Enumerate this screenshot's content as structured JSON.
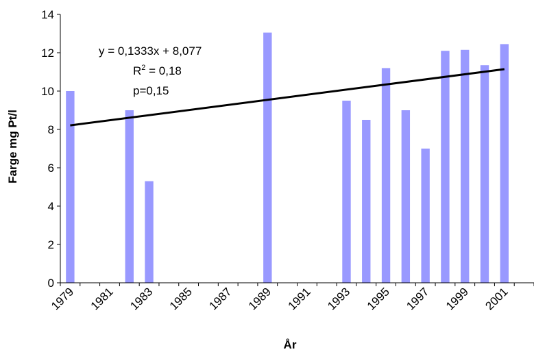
{
  "chart_data": {
    "type": "bar",
    "title": "",
    "xlabel": "År",
    "ylabel": "Farge mg Pt/l",
    "ylim": [
      0,
      14
    ],
    "y_ticks": [
      "0",
      "2",
      "4",
      "6",
      "8",
      "10",
      "12",
      "14"
    ],
    "x_range": [
      1979,
      2002
    ],
    "x_tick_labels": [
      "1979",
      "1981",
      "1983",
      "1985",
      "1987",
      "1989",
      "1991",
      "1993",
      "1995",
      "1997",
      "1999",
      "2001"
    ],
    "bar_color": "#9999ff",
    "grid": false,
    "series": [
      {
        "x": [
          1979,
          1982,
          1983,
          1989,
          1993,
          1994,
          1995,
          1996,
          1997,
          1998,
          1999,
          2000,
          2001
        ],
        "values": [
          10.0,
          9.0,
          5.3,
          13.05,
          9.5,
          8.5,
          11.2,
          9.0,
          7.0,
          12.1,
          12.15,
          11.35,
          12.45
        ]
      }
    ],
    "trendline": {
      "slope": 0.1333,
      "intercept": 8.077,
      "equation_text": "y = 0,1333x + 8,077",
      "r2_prefix": "R",
      "r2_sup": "2",
      "r2_suffix": " = 0,18",
      "p_text": "p=0,15",
      "color": "#000000"
    }
  }
}
